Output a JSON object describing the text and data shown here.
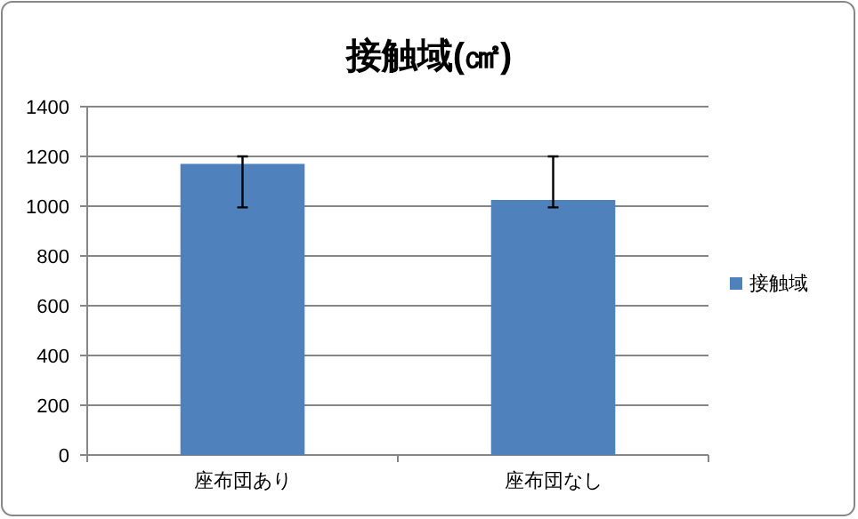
{
  "chart_data": {
    "type": "bar",
    "title": "接触域(㎠)",
    "categories": [
      "座布団あり",
      "座布団なし"
    ],
    "series": [
      {
        "name": "接触域",
        "color": "#4f81bd",
        "values": [
          1170,
          1025
        ],
        "errors": [
          [
            995,
            1200
          ],
          [
            995,
            1200
          ]
        ]
      }
    ],
    "ylim": [
      0,
      1400
    ],
    "yticks": [
      0,
      200,
      400,
      600,
      800,
      1000,
      1200,
      1400
    ],
    "grid": "y",
    "legend": "right"
  }
}
